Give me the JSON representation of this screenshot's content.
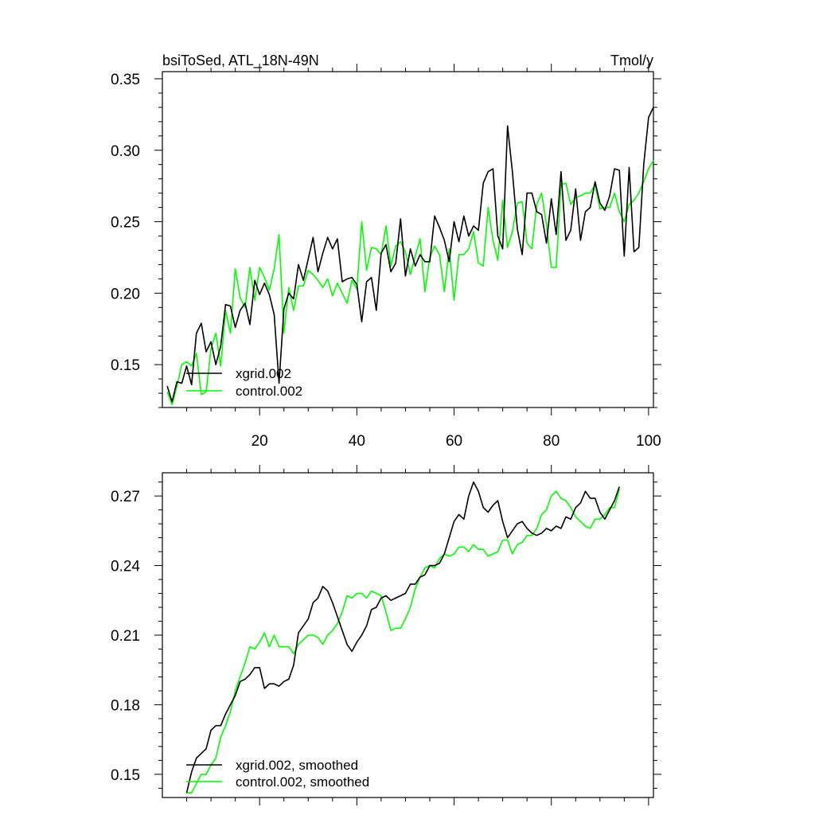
{
  "chart_data": [
    {
      "type": "line",
      "title_left": "bsiToSed, ATL_18N-49N",
      "title_right": "Tmol/y",
      "xlabel": "",
      "ylabel": "",
      "xlim": [
        0,
        101
      ],
      "ylim": [
        0.12,
        0.355
      ],
      "x_ticks": [
        20,
        40,
        60,
        80,
        100
      ],
      "x_tick_labels": [
        "20",
        "40",
        "60",
        "80",
        "100"
      ],
      "y_ticks": [
        0.15,
        0.2,
        0.25,
        0.3,
        0.35
      ],
      "y_tick_labels": [
        "0.15",
        "0.20",
        "0.25",
        "0.30",
        "0.35"
      ],
      "legend_position": "bottom-left",
      "series": [
        {
          "name": "xgrid.002",
          "color": "#000000",
          "x_start": 1,
          "values": [
            0.135,
            0.124,
            0.138,
            0.137,
            0.149,
            0.136,
            0.172,
            0.179,
            0.159,
            0.166,
            0.15,
            0.163,
            0.192,
            0.191,
            0.176,
            0.188,
            0.193,
            0.178,
            0.209,
            0.199,
            0.207,
            0.199,
            0.185,
            0.137,
            0.189,
            0.2,
            0.196,
            0.22,
            0.209,
            0.224,
            0.239,
            0.215,
            0.228,
            0.239,
            0.231,
            0.238,
            0.208,
            0.21,
            0.211,
            0.206,
            0.18,
            0.208,
            0.211,
            0.188,
            0.228,
            0.234,
            0.215,
            0.221,
            0.252,
            0.212,
            0.231,
            0.219,
            0.227,
            0.222,
            0.222,
            0.254,
            0.246,
            0.237,
            0.222,
            0.25,
            0.236,
            0.254,
            0.24,
            0.247,
            0.244,
            0.277,
            0.285,
            0.287,
            0.24,
            0.231,
            0.317,
            0.285,
            0.245,
            0.227,
            0.27,
            0.27,
            0.257,
            0.255,
            0.235,
            0.266,
            0.241,
            0.285,
            0.237,
            0.244,
            0.273,
            0.237,
            0.257,
            0.26,
            0.278,
            0.263,
            0.258,
            0.268,
            0.287,
            0.286,
            0.226,
            0.288,
            0.229,
            0.232,
            0.29,
            0.323,
            0.33
          ]
        },
        {
          "name": "control.002",
          "color": "#00ff00",
          "x_start": 1,
          "values": [
            0.131,
            0.122,
            0.135,
            0.15,
            0.152,
            0.149,
            0.158,
            0.129,
            0.131,
            0.161,
            0.172,
            0.149,
            0.188,
            0.172,
            0.217,
            0.197,
            0.19,
            0.218,
            0.195,
            0.218,
            0.211,
            0.202,
            0.217,
            0.241,
            0.172,
            0.204,
            0.188,
            0.205,
            0.205,
            0.216,
            0.213,
            0.209,
            0.204,
            0.21,
            0.198,
            0.207,
            0.2,
            0.193,
            0.209,
            0.203,
            0.25,
            0.216,
            0.232,
            0.231,
            0.227,
            0.247,
            0.219,
            0.233,
            0.236,
            0.229,
            0.213,
            0.226,
            0.238,
            0.201,
            0.225,
            0.233,
            0.227,
            0.201,
            0.231,
            0.195,
            0.227,
            0.227,
            0.231,
            0.243,
            0.221,
            0.219,
            0.26,
            0.237,
            0.223,
            0.265,
            0.232,
            0.243,
            0.263,
            0.264,
            0.235,
            0.231,
            0.262,
            0.27,
            0.248,
            0.218,
            0.218,
            0.276,
            0.277,
            0.262,
            0.267,
            0.268,
            0.27,
            0.27,
            0.276,
            0.259,
            0.26,
            0.26,
            0.27,
            0.257,
            0.25,
            0.262,
            0.265,
            0.27,
            0.278,
            0.287,
            0.293
          ]
        }
      ]
    },
    {
      "type": "line",
      "title": "",
      "xlabel": "",
      "ylabel": "",
      "xlim": [
        0,
        101
      ],
      "ylim": [
        0.14,
        0.28
      ],
      "x_ticks": [
        20,
        40,
        60,
        80,
        100
      ],
      "x_tick_labels": [],
      "y_ticks": [
        0.15,
        0.18,
        0.21,
        0.24,
        0.27
      ],
      "y_tick_labels": [
        "0.15",
        "0.18",
        "0.21",
        "0.24",
        "0.27"
      ],
      "legend_position": "bottom-left",
      "series": [
        {
          "name": "xgrid.002, smoothed",
          "color": "#000000",
          "x_start": 5,
          "values": [
            0.142,
            0.151,
            0.157,
            0.159,
            0.161,
            0.169,
            0.171,
            0.171,
            0.176,
            0.18,
            0.184,
            0.19,
            0.191,
            0.193,
            0.196,
            0.196,
            0.187,
            0.189,
            0.189,
            0.188,
            0.19,
            0.191,
            0.197,
            0.211,
            0.214,
            0.217,
            0.224,
            0.226,
            0.231,
            0.229,
            0.224,
            0.218,
            0.212,
            0.206,
            0.203,
            0.207,
            0.21,
            0.214,
            0.221,
            0.222,
            0.226,
            0.227,
            0.225,
            0.226,
            0.227,
            0.228,
            0.232,
            0.232,
            0.235,
            0.236,
            0.24,
            0.24,
            0.241,
            0.245,
            0.252,
            0.259,
            0.262,
            0.26,
            0.27,
            0.276,
            0.272,
            0.265,
            0.263,
            0.266,
            0.268,
            0.259,
            0.252,
            0.255,
            0.258,
            0.259,
            0.256,
            0.254,
            0.253,
            0.254,
            0.256,
            0.255,
            0.257,
            0.256,
            0.261,
            0.26,
            0.265,
            0.267,
            0.272,
            0.269,
            0.269,
            0.263,
            0.26,
            0.264,
            0.268,
            0.274
          ]
        },
        {
          "name": "control.002, smoothed",
          "color": "#00ff00",
          "x_start": 5,
          "values": [
            0.142,
            0.142,
            0.146,
            0.15,
            0.15,
            0.154,
            0.157,
            0.166,
            0.171,
            0.177,
            0.186,
            0.192,
            0.198,
            0.205,
            0.204,
            0.207,
            0.211,
            0.205,
            0.21,
            0.205,
            0.205,
            0.205,
            0.202,
            0.206,
            0.208,
            0.21,
            0.21,
            0.209,
            0.206,
            0.21,
            0.212,
            0.215,
            0.22,
            0.227,
            0.226,
            0.228,
            0.228,
            0.226,
            0.229,
            0.228,
            0.227,
            0.22,
            0.212,
            0.213,
            0.213,
            0.217,
            0.222,
            0.23,
            0.235,
            0.239,
            0.24,
            0.239,
            0.243,
            0.245,
            0.244,
            0.245,
            0.248,
            0.248,
            0.246,
            0.249,
            0.247,
            0.247,
            0.244,
            0.245,
            0.246,
            0.251,
            0.251,
            0.245,
            0.249,
            0.25,
            0.253,
            0.253,
            0.256,
            0.262,
            0.264,
            0.27,
            0.272,
            0.269,
            0.268,
            0.265,
            0.261,
            0.259,
            0.257,
            0.256,
            0.26,
            0.26,
            0.262,
            0.265,
            0.265,
            0.273
          ]
        }
      ]
    }
  ]
}
